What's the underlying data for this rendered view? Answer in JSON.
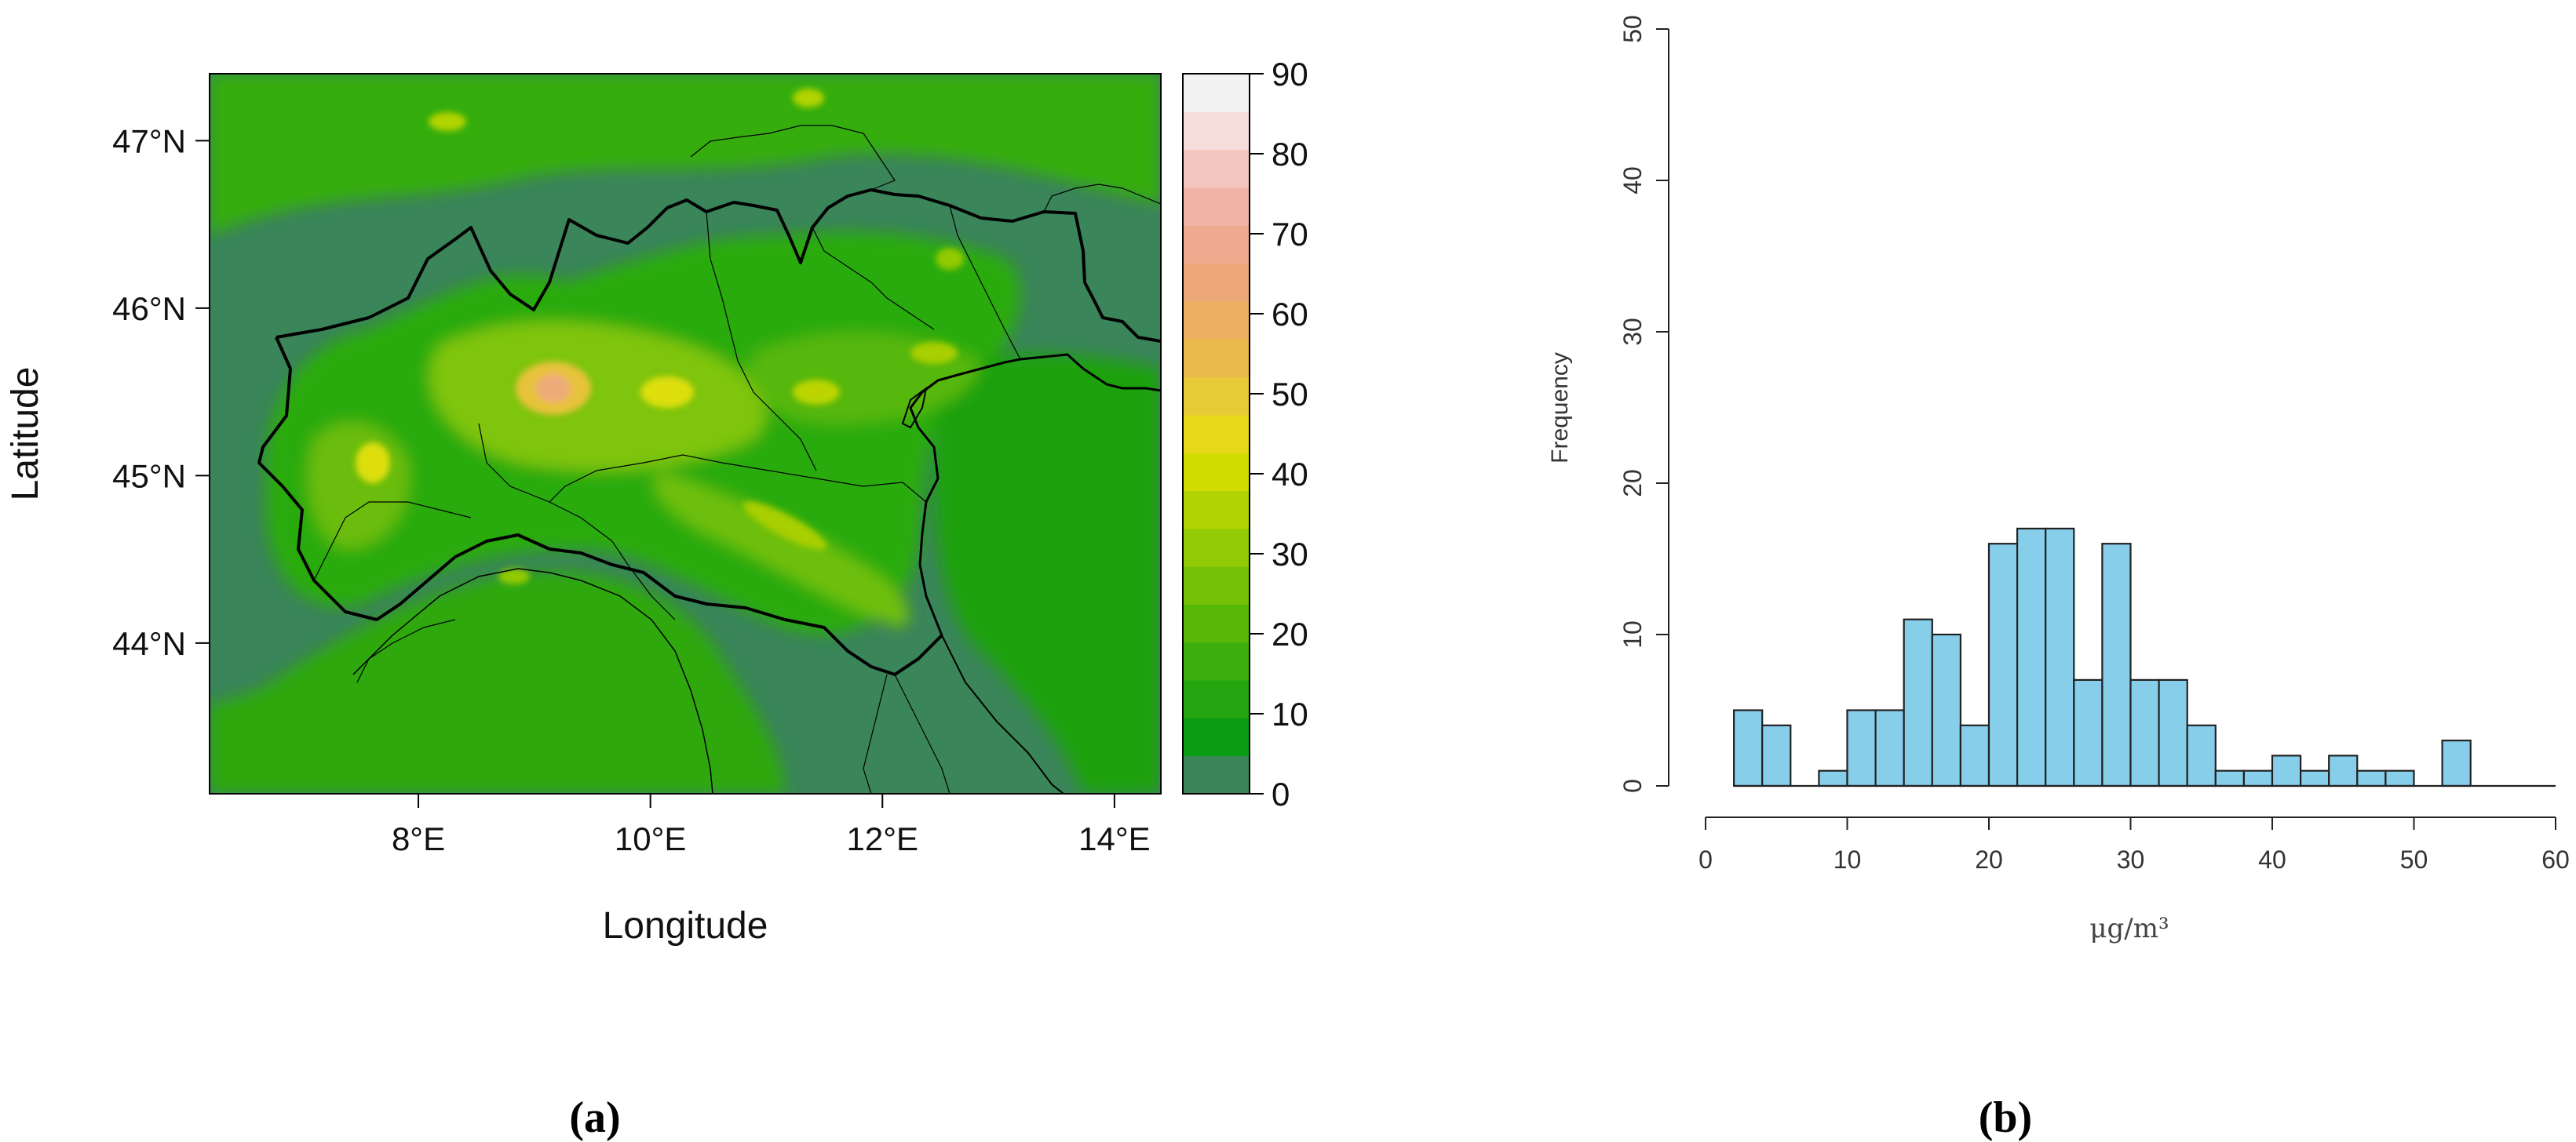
{
  "panels": {
    "a_label": "(a)",
    "b_label": "(b)"
  },
  "chart_data": [
    {
      "type": "heatmap",
      "xlabel": "Longitude",
      "ylabel": "Latitude",
      "xlim": [
        6.2,
        14.4
      ],
      "ylim": [
        43.1,
        47.4
      ],
      "x_ticks": [
        8,
        10,
        12,
        14
      ],
      "x_tick_labels": [
        "8°E",
        "10°E",
        "12°E",
        "14°E"
      ],
      "y_ticks": [
        44,
        45,
        46,
        47
      ],
      "y_tick_labels": [
        "44°N",
        "45°N",
        "46°N",
        "47°N"
      ],
      "colorbar": {
        "range": [
          0,
          90
        ],
        "tick_values": [
          0,
          10,
          20,
          30,
          40,
          50,
          60,
          70,
          80,
          90
        ],
        "tick_labels": [
          "0",
          "10",
          "20",
          "30",
          "40",
          "50",
          "60",
          "70",
          "80",
          "90"
        ],
        "colors": [
          "#3a8559",
          "#0a9d14",
          "#23a60f",
          "#3caf0c",
          "#58b80a",
          "#75c108",
          "#93ca06",
          "#b2d303",
          "#d3dc01",
          "#e6d91a",
          "#e8c938",
          "#eabb4c",
          "#ebb062",
          "#eca878",
          "#eeaa8e",
          "#f0b5a6",
          "#f3c6c0",
          "#f6dcdb",
          "#f2f2f2"
        ]
      },
      "hotspots": [
        {
          "lon": 9.2,
          "lat": 45.47,
          "value": 55
        },
        {
          "lon": 10.15,
          "lat": 45.5,
          "value": 45
        },
        {
          "lon": 7.7,
          "lat": 45.06,
          "value": 42
        },
        {
          "lon": 11.4,
          "lat": 45.45,
          "value": 38
        },
        {
          "lon": 11.0,
          "lat": 44.7,
          "value": 32
        },
        {
          "lon": 12.3,
          "lat": 45.45,
          "value": 30
        },
        {
          "lon": 8.9,
          "lat": 44.4,
          "value": 28
        }
      ]
    },
    {
      "type": "bar",
      "xlabel": "μg/m³",
      "ylabel": "Frequency",
      "xlim": [
        0,
        60
      ],
      "ylim": [
        0,
        50
      ],
      "x_ticks": [
        0,
        10,
        20,
        30,
        40,
        50,
        60
      ],
      "y_ticks": [
        0,
        10,
        20,
        30,
        40,
        50
      ],
      "bin_width": 2,
      "bins_start": [
        2,
        4,
        6,
        8,
        10,
        12,
        14,
        16,
        18,
        20,
        22,
        24,
        26,
        28,
        30,
        32,
        34,
        36,
        38,
        40,
        42,
        44,
        46,
        48,
        50,
        52
      ],
      "values": [
        5,
        4,
        0,
        1,
        5,
        5,
        11,
        10,
        4,
        16,
        17,
        17,
        7,
        16,
        7,
        7,
        4,
        1,
        1,
        2,
        1,
        2,
        1,
        1,
        0,
        3
      ],
      "bar_color": "#87ceeb"
    }
  ]
}
